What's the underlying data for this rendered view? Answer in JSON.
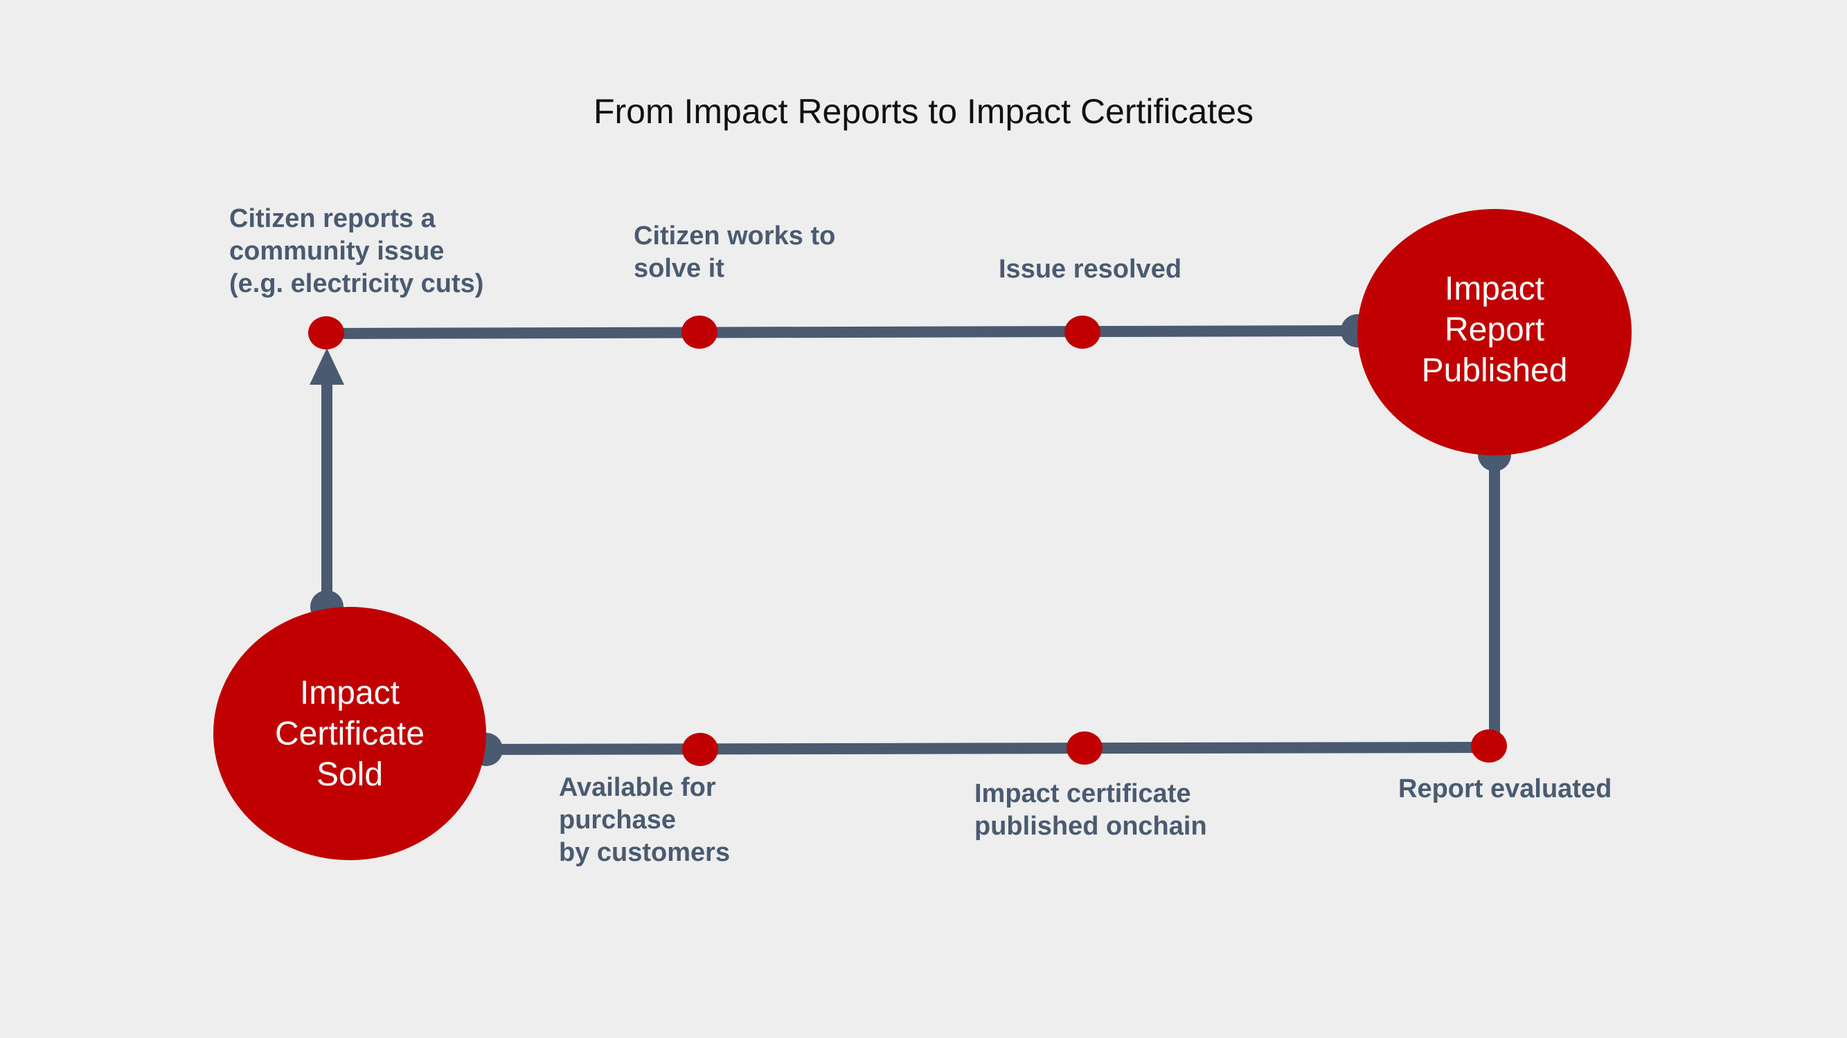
{
  "title": "From Impact Reports to Impact Certificates",
  "colors": {
    "background": "#eeeeee",
    "line": "#4a5a70",
    "accent": "#c00000",
    "label_text": "#4a5a70",
    "title_text": "#111111",
    "node_text": "#ffffff"
  },
  "nodes": {
    "report_published": "Impact\nReport\nPublished",
    "certificate_sold": "Impact\nCertificate\nSold"
  },
  "steps": {
    "citizen_reports": "Citizen reports a\ncommunity issue\n(e.g. electricity cuts)",
    "citizen_works": "Citizen works to\nsolve it",
    "issue_resolved": "Issue resolved",
    "report_evaluated": "Report evaluated",
    "certificate_onchain": "Impact certificate\npublished onchain",
    "available_purchase": "Available for\npurchase\nby customers"
  }
}
